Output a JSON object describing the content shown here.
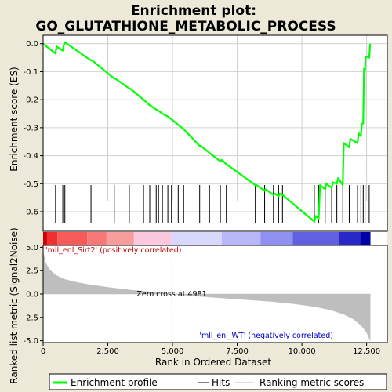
{
  "chart_data": {
    "type": "line",
    "title_line1": "Enrichment plot:",
    "title_line2": "GO_GLUTATHIONE_METABOLIC_PROCESS",
    "es_panel": {
      "ylabel": "Enrichment score (ES)",
      "ylim": [
        -0.67,
        0.03
      ],
      "yticks": [
        0.0,
        -0.1,
        -0.2,
        -0.3,
        -0.4,
        -0.5,
        -0.6
      ],
      "ytick_labels": [
        "0.0",
        "-0.1",
        "-0.2",
        "-0.3",
        "-0.4",
        "-0.5",
        "-0.6"
      ],
      "grid": true,
      "line_color": "#00FF00",
      "points": [
        [
          0,
          0.0
        ],
        [
          480,
          -0.035
        ],
        [
          520,
          -0.01
        ],
        [
          760,
          -0.025
        ],
        [
          800,
          -0.005
        ],
        [
          840,
          0.005
        ],
        [
          1850,
          -0.06
        ],
        [
          1900,
          -0.06
        ],
        [
          2750,
          -0.125
        ],
        [
          2800,
          -0.125
        ],
        [
          3330,
          -0.16
        ],
        [
          3360,
          -0.16
        ],
        [
          3880,
          -0.2
        ],
        [
          4120,
          -0.22
        ],
        [
          4370,
          -0.235
        ],
        [
          4460,
          -0.24
        ],
        [
          4610,
          -0.25
        ],
        [
          4820,
          -0.26
        ],
        [
          4960,
          -0.27
        ],
        [
          5220,
          -0.29
        ],
        [
          5430,
          -0.305
        ],
        [
          6050,
          -0.365
        ],
        [
          6100,
          -0.365
        ],
        [
          6430,
          -0.39
        ],
        [
          6850,
          -0.42
        ],
        [
          6900,
          -0.415
        ],
        [
          7080,
          -0.43
        ],
        [
          8200,
          -0.505
        ],
        [
          8250,
          -0.505
        ],
        [
          8560,
          -0.525
        ],
        [
          8600,
          -0.52
        ],
        [
          8900,
          -0.54
        ],
        [
          8950,
          -0.535
        ],
        [
          9100,
          -0.545
        ],
        [
          9150,
          -0.535
        ],
        [
          9250,
          -0.54
        ],
        [
          10480,
          -0.635
        ],
        [
          10530,
          -0.615
        ],
        [
          10650,
          -0.625
        ],
        [
          10700,
          -0.505
        ],
        [
          10900,
          -0.52
        ],
        [
          10940,
          -0.5
        ],
        [
          11150,
          -0.515
        ],
        [
          11200,
          -0.495
        ],
        [
          11350,
          -0.5
        ],
        [
          11400,
          -0.48
        ],
        [
          11580,
          -0.505
        ],
        [
          11620,
          -0.355
        ],
        [
          11830,
          -0.37
        ],
        [
          11870,
          -0.34
        ],
        [
          12150,
          -0.355
        ],
        [
          12190,
          -0.32
        ],
        [
          12280,
          -0.33
        ],
        [
          12320,
          -0.285
        ],
        [
          12370,
          -0.285
        ],
        [
          12400,
          -0.09
        ],
        [
          12440,
          -0.095
        ],
        [
          12460,
          -0.045
        ],
        [
          12600,
          -0.05
        ],
        [
          12640,
          0.0
        ]
      ]
    },
    "hits": [
      480,
      760,
      840,
      1850,
      2750,
      3330,
      3880,
      4120,
      4370,
      4460,
      4610,
      4820,
      4960,
      5220,
      5430,
      6050,
      6430,
      6850,
      7080,
      8200,
      8560,
      8900,
      9100,
      9250,
      10480,
      10650,
      10900,
      11150,
      11350,
      11580,
      11830,
      12150,
      12280,
      12370,
      12440,
      12600
    ],
    "color_bar": {
      "segments": [
        {
          "start": 0,
          "end": 150,
          "color": "#D20000"
        },
        {
          "start": 150,
          "end": 550,
          "color": "#F03030"
        },
        {
          "start": 550,
          "end": 1700,
          "color": "#F85A5A"
        },
        {
          "start": 1700,
          "end": 2450,
          "color": "#F87878"
        },
        {
          "start": 2450,
          "end": 3500,
          "color": "#F89C9C"
        },
        {
          "start": 3500,
          "end": 4950,
          "color": "#FCC8E0"
        },
        {
          "start": 4950,
          "end": 6900,
          "color": "#D8D8FC"
        },
        {
          "start": 6900,
          "end": 8400,
          "color": "#B8B8F8"
        },
        {
          "start": 8400,
          "end": 9650,
          "color": "#9090F0"
        },
        {
          "start": 9650,
          "end": 11450,
          "color": "#6060E0"
        },
        {
          "start": 11450,
          "end": 12250,
          "color": "#2828C8"
        },
        {
          "start": 12250,
          "end": 12650,
          "color": "#0000A8"
        }
      ]
    },
    "metric_panel": {
      "ylabel": "Ranked list metric (Signal2Noise)",
      "ylim": [
        -5.2,
        5.2
      ],
      "yticks": [
        5.0,
        2.5,
        0.0,
        -2.5,
        -5.0
      ],
      "ytick_labels": [
        "5.0",
        "2.5",
        "0.0",
        "-2.5",
        "-5.0"
      ],
      "fill_color": "#BEBEBE",
      "profile": [
        [
          0,
          4.5
        ],
        [
          100,
          3.3
        ],
        [
          250,
          2.6
        ],
        [
          500,
          2.0
        ],
        [
          800,
          1.6
        ],
        [
          1200,
          1.3
        ],
        [
          1800,
          1.0
        ],
        [
          2500,
          0.72
        ],
        [
          3300,
          0.45
        ],
        [
          4200,
          0.2
        ],
        [
          4981,
          0.0
        ],
        [
          5800,
          -0.2
        ],
        [
          6800,
          -0.4
        ],
        [
          7800,
          -0.6
        ],
        [
          8800,
          -0.8
        ],
        [
          9700,
          -1.05
        ],
        [
          10500,
          -1.35
        ],
        [
          11100,
          -1.7
        ],
        [
          11600,
          -2.15
        ],
        [
          12000,
          -2.7
        ],
        [
          12300,
          -3.4
        ],
        [
          12500,
          -4.1
        ],
        [
          12640,
          -5.0
        ]
      ],
      "zero_cross_label": "Zero cross at 4981",
      "zero_cross_x": 4981,
      "pos_label": "'mll_enl_Sirt2' (positively correlated)",
      "neg_label": "'mll_enl_WT' (negatively correlated)",
      "pos_label_color": "#C80000",
      "neg_label_color": "#0000C8"
    },
    "x_axis": {
      "xlabel": "Rank in Ordered Dataset",
      "xlim": [
        0,
        13300
      ],
      "xticks": [
        0,
        2500,
        5000,
        7500,
        10000,
        12500
      ],
      "xtick_labels": [
        "0",
        "2,500",
        "5,000",
        "7,500",
        "10,000",
        "12,500"
      ]
    },
    "legend": {
      "placement": "bottom",
      "entries": [
        {
          "label": "Enrichment profile",
          "color": "#00FF00",
          "kind": "line-thick"
        },
        {
          "label": "Hits",
          "color": "#000000",
          "kind": "line-thin"
        },
        {
          "label": "Ranking metric scores",
          "color": "#BEBEBE",
          "kind": "line-thin"
        }
      ]
    }
  }
}
